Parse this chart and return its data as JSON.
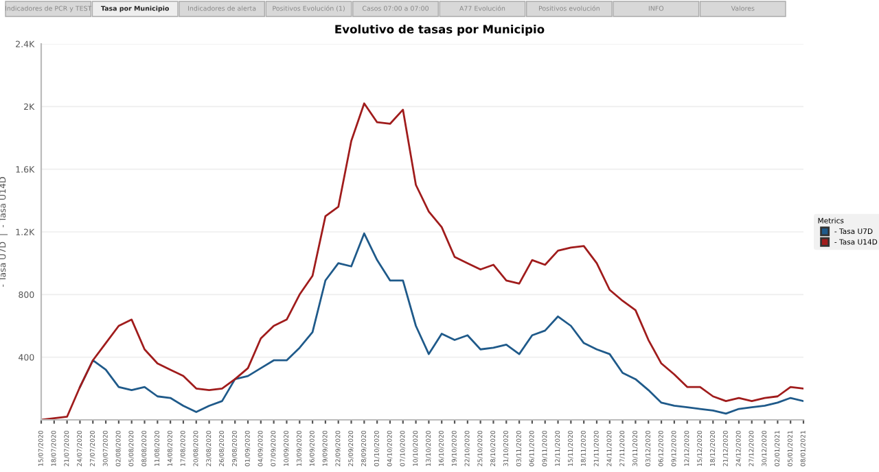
{
  "chart_data": {
    "type": "line",
    "title": "Evolutivo de tasas por Municipio",
    "ylabel": "- Tasa U7D  |  - Tasa U14D",
    "legend_title": "Metrics",
    "legend": "right",
    "grid": "y",
    "marker": "none",
    "line_style": "solid",
    "annotations": [
      "Indicadores de PCR y TEST",
      "Tasa por Municipio",
      "Indicadores de alerta",
      "Positivos Evolución (1)",
      "Casos 07:00 a 07:00",
      "A77 Evolución",
      "Positivos evolución",
      "INFO",
      "Valores"
    ],
    "x": [
      "2020-07-15",
      "2020-07-18",
      "2020-07-21",
      "2020-07-24",
      "2020-07-27",
      "2020-07-30",
      "2020-08-02",
      "2020-08-05",
      "2020-08-08",
      "2020-08-11",
      "2020-08-14",
      "2020-08-17",
      "2020-08-20",
      "2020-08-23",
      "2020-08-26",
      "2020-08-29",
      "2020-09-01",
      "2020-09-04",
      "2020-09-07",
      "2020-09-10",
      "2020-09-13",
      "2020-09-16",
      "2020-09-19",
      "2020-09-22",
      "2020-09-25",
      "2020-09-28",
      "2020-10-01",
      "2020-10-04",
      "2020-10-07",
      "2020-10-10",
      "2020-10-13",
      "2020-10-16",
      "2020-10-19",
      "2020-10-22",
      "2020-10-25",
      "2020-10-28",
      "2020-10-31",
      "2020-11-03",
      "2020-11-06",
      "2020-11-09",
      "2020-11-12",
      "2020-11-15",
      "2020-11-18",
      "2020-11-21",
      "2020-11-24",
      "2020-11-27",
      "2020-11-30",
      "2020-12-03",
      "2020-12-06",
      "2020-12-09",
      "2020-12-12",
      "2020-12-15",
      "2020-12-18",
      "2020-12-21",
      "2020-12-24",
      "2020-12-27",
      "2020-12-30",
      "2021-01-02",
      "2021-01-05",
      "2021-01-08"
    ],
    "xlim": [
      "2020-07-15",
      "2021-01-08"
    ],
    "xticks": [
      {
        "value": "2020-07-15",
        "label": "15/07/2020"
      },
      {
        "value": "2020-07-18",
        "label": "18/07/2020"
      },
      {
        "value": "2020-07-21",
        "label": "21/07/2020"
      },
      {
        "value": "2020-07-24",
        "label": "24/07/2020"
      },
      {
        "value": "2020-07-27",
        "label": "27/07/2020"
      },
      {
        "value": "2020-07-30",
        "label": "30/07/2020"
      },
      {
        "value": "2020-08-02",
        "label": "02/08/2020"
      },
      {
        "value": "2020-08-05",
        "label": "05/08/2020"
      },
      {
        "value": "2020-08-08",
        "label": "08/08/2020"
      },
      {
        "value": "2020-08-11",
        "label": "11/08/2020"
      },
      {
        "value": "2020-08-14",
        "label": "14/08/2020"
      },
      {
        "value": "2020-08-17",
        "label": "17/08/2020"
      },
      {
        "value": "2020-08-20",
        "label": "20/08/2020"
      },
      {
        "value": "2020-08-23",
        "label": "23/08/2020"
      },
      {
        "value": "2020-08-26",
        "label": "26/08/2020"
      },
      {
        "value": "2020-08-29",
        "label": "29/08/2020"
      },
      {
        "value": "2020-09-01",
        "label": "01/09/2020"
      },
      {
        "value": "2020-09-04",
        "label": "04/09/2020"
      },
      {
        "value": "2020-09-07",
        "label": "07/09/2020"
      },
      {
        "value": "2020-09-10",
        "label": "10/09/2020"
      },
      {
        "value": "2020-09-13",
        "label": "13/09/2020"
      },
      {
        "value": "2020-09-16",
        "label": "16/09/2020"
      },
      {
        "value": "2020-09-19",
        "label": "19/09/2020"
      },
      {
        "value": "2020-09-22",
        "label": "22/09/2020"
      },
      {
        "value": "2020-09-25",
        "label": "25/09/2020"
      },
      {
        "value": "2020-09-28",
        "label": "28/09/2020"
      },
      {
        "value": "2020-10-01",
        "label": "01/10/2020"
      },
      {
        "value": "2020-10-04",
        "label": "04/10/2020"
      },
      {
        "value": "2020-10-07",
        "label": "07/10/2020"
      },
      {
        "value": "2020-10-10",
        "label": "10/10/2020"
      },
      {
        "value": "2020-10-13",
        "label": "13/10/2020"
      },
      {
        "value": "2020-10-16",
        "label": "16/10/2020"
      },
      {
        "value": "2020-10-19",
        "label": "19/10/2020"
      },
      {
        "value": "2020-10-22",
        "label": "22/10/2020"
      },
      {
        "value": "2020-10-25",
        "label": "25/10/2020"
      },
      {
        "value": "2020-10-28",
        "label": "28/10/2020"
      },
      {
        "value": "2020-10-31",
        "label": "31/10/2020"
      },
      {
        "value": "2020-11-03",
        "label": "03/11/2020"
      },
      {
        "value": "2020-11-06",
        "label": "06/11/2020"
      },
      {
        "value": "2020-11-09",
        "label": "09/11/2020"
      },
      {
        "value": "2020-11-12",
        "label": "12/11/2020"
      },
      {
        "value": "2020-11-15",
        "label": "15/11/2020"
      },
      {
        "value": "2020-11-18",
        "label": "18/11/2020"
      },
      {
        "value": "2020-11-21",
        "label": "21/11/2020"
      },
      {
        "value": "2020-11-24",
        "label": "24/11/2020"
      },
      {
        "value": "2020-11-27",
        "label": "27/11/2020"
      },
      {
        "value": "2020-11-30",
        "label": "30/11/2020"
      },
      {
        "value": "2020-12-03",
        "label": "03/12/2020"
      },
      {
        "value": "2020-12-06",
        "label": "06/12/2020"
      },
      {
        "value": "2020-12-09",
        "label": "09/12/2020"
      },
      {
        "value": "2020-12-12",
        "label": "12/12/2020"
      },
      {
        "value": "2020-12-15",
        "label": "15/12/2020"
      },
      {
        "value": "2020-12-18",
        "label": "18/12/2020"
      },
      {
        "value": "2020-12-21",
        "label": "21/12/2020"
      },
      {
        "value": "2020-12-24",
        "label": "24/12/2020"
      },
      {
        "value": "2020-12-27",
        "label": "27/12/2020"
      },
      {
        "value": "2020-12-30",
        "label": "30/12/2020"
      },
      {
        "value": "2021-01-02",
        "label": "02/01/2021"
      },
      {
        "value": "2021-01-05",
        "label": "05/01/2021"
      },
      {
        "value": "2021-01-08",
        "label": "08/01/2021"
      }
    ],
    "ylim": [
      0,
      2400
    ],
    "yticks": [
      {
        "value": 0,
        "label": null
      },
      400,
      800,
      {
        "value": 1200,
        "label": "1.2K"
      },
      {
        "value": 1600,
        "label": "1.6K"
      },
      {
        "value": 2000,
        "label": "2K"
      },
      {
        "value": 2400,
        "label": "2.4K"
      }
    ],
    "series": [
      {
        "name": "- Tasa U7D",
        "color": "#1f5a8a",
        "values": [
          null,
          null,
          null,
          210,
          380,
          320,
          210,
          190,
          210,
          150,
          140,
          90,
          50,
          90,
          120,
          260,
          280,
          330,
          380,
          380,
          460,
          560,
          890,
          1000,
          980,
          1190,
          1020,
          890,
          890,
          600,
          420,
          550,
          510,
          540,
          450,
          460,
          480,
          420,
          540,
          570,
          660,
          600,
          490,
          450,
          420,
          300,
          260,
          190,
          110,
          90,
          80,
          70,
          60,
          40,
          70,
          80,
          90,
          110,
          140,
          120
        ]
      },
      {
        "name": "- Tasa U14D",
        "color": "#a01c1c",
        "values": [
          0,
          10,
          20,
          210,
          380,
          490,
          600,
          640,
          450,
          360,
          320,
          280,
          200,
          190,
          200,
          260,
          330,
          520,
          600,
          640,
          800,
          920,
          1300,
          1360,
          1780,
          2020,
          1900,
          1890,
          1980,
          1500,
          1330,
          1230,
          1040,
          1000,
          960,
          990,
          890,
          870,
          1020,
          990,
          1080,
          1100,
          1110,
          1000,
          830,
          760,
          700,
          510,
          360,
          290,
          210,
          210,
          150,
          120,
          140,
          120,
          140,
          150,
          210,
          200
        ]
      }
    ]
  }
}
